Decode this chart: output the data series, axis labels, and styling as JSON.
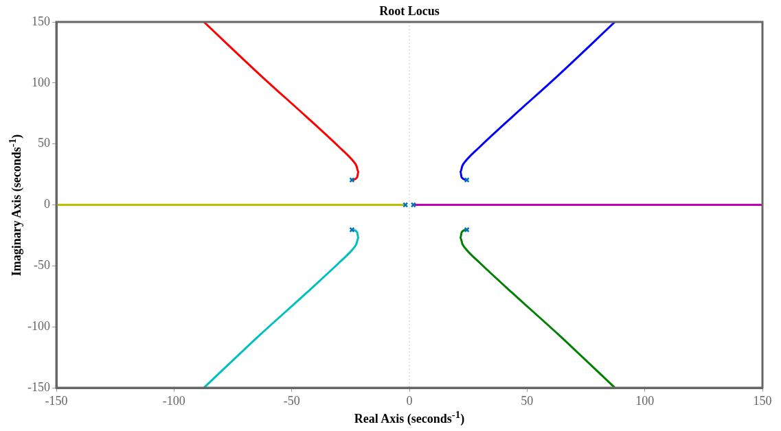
{
  "chart_data": {
    "type": "line",
    "title": "Root Locus",
    "xlabel": "Real Axis (seconds$^{-1}$)",
    "ylabel": "Imaginary Axis (seconds$^{-1}$)",
    "xlim": [
      -150,
      150
    ],
    "ylim": [
      -150,
      150
    ],
    "xticks": [
      -150,
      -100,
      -50,
      0,
      50,
      100,
      150
    ],
    "yticks": [
      -150,
      -100,
      -50,
      0,
      50,
      100,
      150
    ],
    "grid": false,
    "legend": false,
    "ref_lines": [
      {
        "axis": "x",
        "value": 0,
        "color": "#c8c8c8",
        "line_style": "dotted"
      }
    ],
    "series": [
      {
        "color": "#ff0000",
        "x": [
          -24.4,
          -22.2,
          -21.7,
          -22.5,
          -24.1,
          -30,
          -43.6,
          -63,
          -87.3
        ],
        "values": [
          20.4,
          22.5,
          27,
          32,
          36.4,
          47.7,
          72,
          105.8,
          150
        ]
      },
      {
        "color": "#0000ff",
        "x": [
          24.4,
          22.2,
          21.7,
          22.5,
          24.1,
          30,
          43.6,
          63,
          87.3
        ],
        "values": [
          20.4,
          22.5,
          27,
          32,
          36.4,
          47.7,
          72,
          105.8,
          150
        ]
      },
      {
        "color": "#00bfbf",
        "x": [
          -24.4,
          -22.2,
          -21.7,
          -22.5,
          -24.1,
          -30,
          -43.6,
          -63,
          -87.3
        ],
        "values": [
          -20.4,
          -22.5,
          -27,
          -32,
          -36.4,
          -47.7,
          -72,
          -105.8,
          -150
        ]
      },
      {
        "color": "#008000",
        "x": [
          24.4,
          22.2,
          21.7,
          22.5,
          24.1,
          30,
          43.6,
          63,
          87.3
        ],
        "values": [
          -20.4,
          -22.5,
          -27,
          -32,
          -36.4,
          -47.7,
          -72,
          -105.8,
          -150
        ]
      },
      {
        "color": "#bfbf00",
        "x": [
          -1.7,
          -150
        ],
        "values": [
          0,
          0
        ]
      },
      {
        "color": "#bf00bf",
        "x": [
          1.7,
          150
        ],
        "values": [
          0,
          0
        ]
      },
      {
        "type": "scatter",
        "marker": "cross",
        "color": "#0072bd",
        "x": [
          -24.4,
          24.4,
          -24.4,
          24.4,
          -1.7,
          1.7
        ],
        "values": [
          20.4,
          20.4,
          -20.4,
          -20.4,
          0,
          0
        ]
      }
    ]
  }
}
